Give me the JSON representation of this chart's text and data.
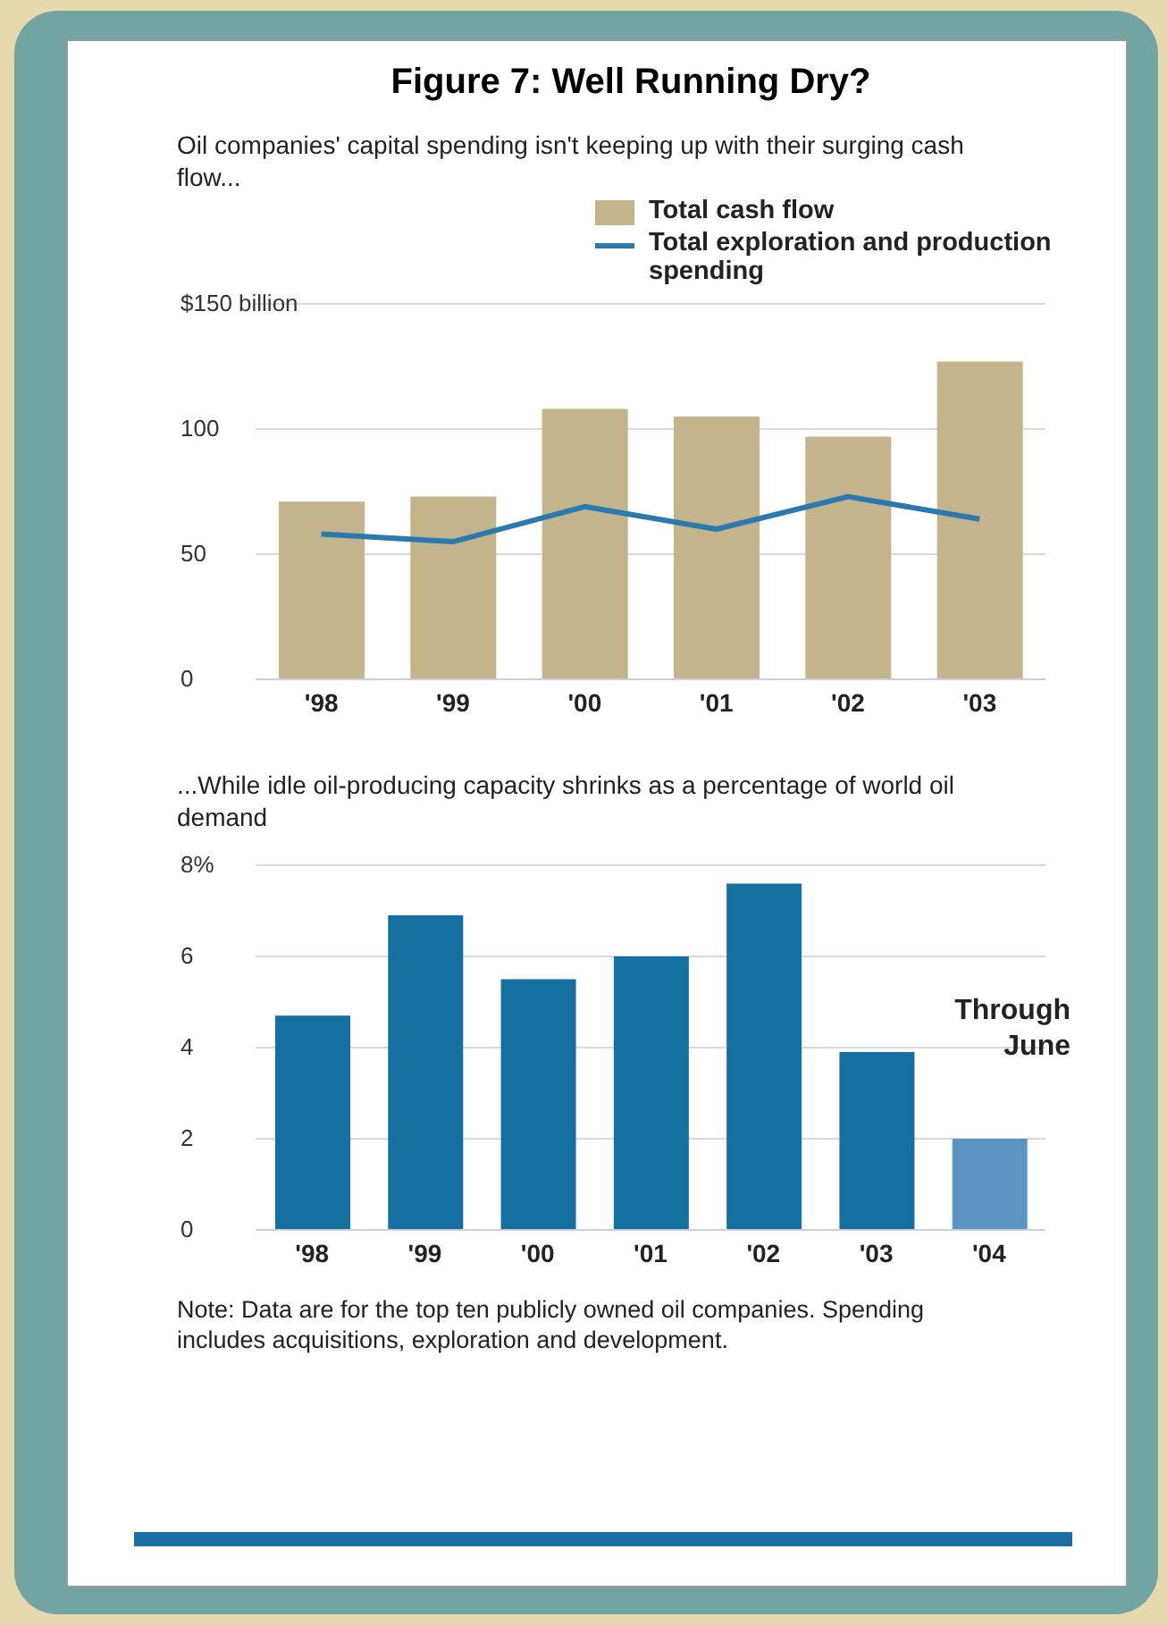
{
  "chart_data": [
    {
      "type": "bar",
      "title": "Figure 7: Well Running Dry?",
      "subtitle": "Oil companies' capital spending isn't keeping up with their surging cash flow...",
      "categories": [
        "'98",
        "'99",
        "'00",
        "'01",
        "'02",
        "'03"
      ],
      "series": [
        {
          "name": "Total cash flow",
          "color": "#c4b48c",
          "values": [
            71,
            73,
            108,
            105,
            97,
            127
          ]
        },
        {
          "name": "Total exploration and production spending",
          "type": "line",
          "color": "#2a7ab0",
          "values": [
            58,
            55,
            69,
            60,
            73,
            64
          ]
        }
      ],
      "ylim": [
        0,
        150
      ],
      "yticks": [
        0,
        50,
        100,
        {
          "value": 150,
          "label": "$150 billion"
        }
      ],
      "grid": "y",
      "legend": "top right"
    },
    {
      "type": "bar",
      "subtitle": "...While idle oil-producing capacity shrinks as a percentage of world oil demand",
      "categories": [
        "'98",
        "'99",
        "'00",
        "'01",
        "'02",
        "'03",
        "'04"
      ],
      "values": [
        4.7,
        6.9,
        5.5,
        6.0,
        7.6,
        3.9,
        2.0
      ],
      "colors": [
        "#1470a0",
        "#1470a0",
        "#1470a0",
        "#1470a0",
        "#1470a0",
        "#1470a0",
        "#5b95c3"
      ],
      "ylim": [
        0,
        8
      ],
      "yticks": [
        0,
        2,
        4,
        6,
        {
          "value": 8,
          "label": "8%"
        }
      ],
      "grid": "y",
      "annotations": [
        "Through June",
        "Note: Data are for the top ten publicly owned oil companies.  Spending includes acquisitions, exploration and development."
      ]
    }
  ]
}
